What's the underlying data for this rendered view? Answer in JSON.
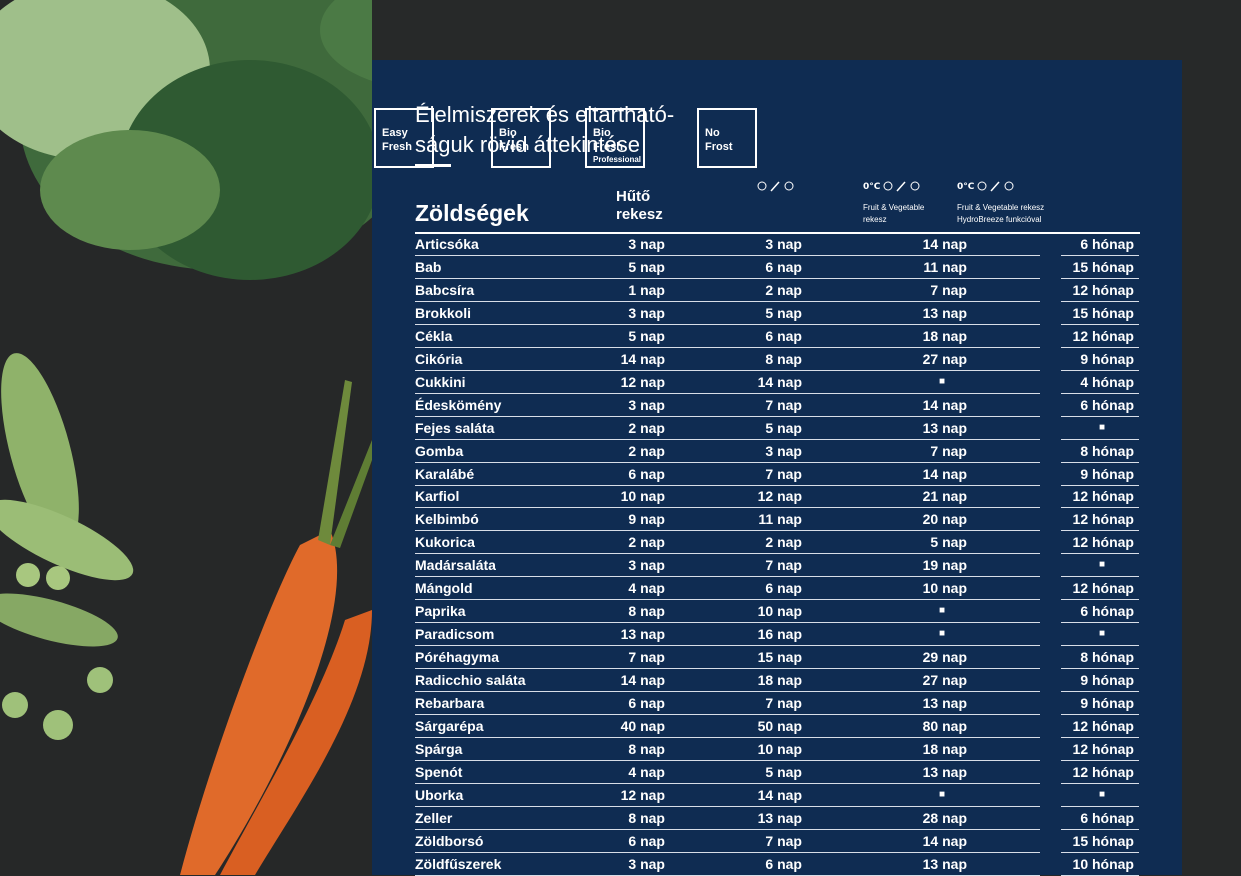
{
  "header": {
    "title_lines": [
      "Élelmiszerek és eltartható-",
      "ságuk rövid áttekintése"
    ]
  },
  "badges": [
    {
      "lines": [
        "Easy",
        "Fresh"
      ]
    },
    {
      "lines": [
        "Bio",
        "Fresh"
      ]
    },
    {
      "lines": [
        "Bio",
        "Fresh",
        "Professional"
      ]
    },
    {
      "lines": [
        "No",
        "Frost"
      ]
    }
  ],
  "icon_labels": [
    "0°C",
    "0°C"
  ],
  "notes": [
    [
      "Fruit & Vegetable",
      "rekesz"
    ],
    [
      "Fruit & Vegetable rekesz",
      "HydroBreeze funkcióval"
    ]
  ],
  "table": {
    "section": "Zöldségek",
    "column_header": [
      "Hűtő",
      "rekesz"
    ],
    "rows": [
      [
        "Articsóka",
        "3 nap",
        "3 nap",
        "14 nap",
        "6 hónap"
      ],
      [
        "Bab",
        "5 nap",
        "6 nap",
        "11 nap",
        "15 hónap"
      ],
      [
        "Babcsíra",
        "1 nap",
        "2 nap",
        "7 nap",
        "12 hónap"
      ],
      [
        "Brokkoli",
        "3 nap",
        "5 nap",
        "13 nap",
        "15 hónap"
      ],
      [
        "Cékla",
        "5 nap",
        "6 nap",
        "18 nap",
        "12 hónap"
      ],
      [
        "Cikória",
        "14 nap",
        "8 nap",
        "27 nap",
        "9 hónap"
      ],
      [
        "Cukkini",
        "12 nap",
        "14 nap",
        "■",
        "4 hónap"
      ],
      [
        "Édeskömény",
        "3 nap",
        "7 nap",
        "14 nap",
        "6 hónap"
      ],
      [
        "Fejes saláta",
        "2 nap",
        "5 nap",
        "13 nap",
        "■"
      ],
      [
        "Gomba",
        "2 nap",
        "3 nap",
        "7 nap",
        "8 hónap"
      ],
      [
        "Karalábé",
        "6 nap",
        "7 nap",
        "14 nap",
        "9 hónap"
      ],
      [
        "Karfiol",
        "10 nap",
        "12 nap",
        "21 nap",
        "12 hónap"
      ],
      [
        "Kelbimbó",
        "9 nap",
        "11 nap",
        "20 nap",
        "12 hónap"
      ],
      [
        "Kukorica",
        "2 nap",
        "2 nap",
        "5 nap",
        "12 hónap"
      ],
      [
        "Madársaláta",
        "3 nap",
        "7 nap",
        "19 nap",
        "■"
      ],
      [
        "Mángold",
        "4 nap",
        "6 nap",
        "10 nap",
        "12 hónap"
      ],
      [
        "Paprika",
        "8 nap",
        "10 nap",
        "■",
        "6 hónap"
      ],
      [
        "Paradicsom",
        "13 nap",
        "16 nap",
        "■",
        "■"
      ],
      [
        "Póréhagyma",
        "7 nap",
        "15 nap",
        "29 nap",
        "8 hónap"
      ],
      [
        "Radicchio saláta",
        "14 nap",
        "18 nap",
        "27 nap",
        "9 hónap"
      ],
      [
        "Rebarbara",
        "6 nap",
        "7 nap",
        "13 nap",
        "9 hónap"
      ],
      [
        "Sárgarépa",
        "40 nap",
        "50 nap",
        "80 nap",
        "12 hónap"
      ],
      [
        "Spárga",
        "8 nap",
        "10 nap",
        "18 nap",
        "12 hónap"
      ],
      [
        "Spenót",
        "4 nap",
        "5 nap",
        "13 nap",
        "12 hónap"
      ],
      [
        "Uborka",
        "12 nap",
        "14 nap",
        "■",
        "■"
      ],
      [
        "Zeller",
        "8 nap",
        "13 nap",
        "28 nap",
        "6 hónap"
      ],
      [
        "Zöldborsó",
        "6 nap",
        "7 nap",
        "14 nap",
        "15 hónap"
      ],
      [
        "Zöldfűszerek",
        "3 nap",
        "6 nap",
        "13 nap",
        "10 hónap"
      ]
    ]
  }
}
